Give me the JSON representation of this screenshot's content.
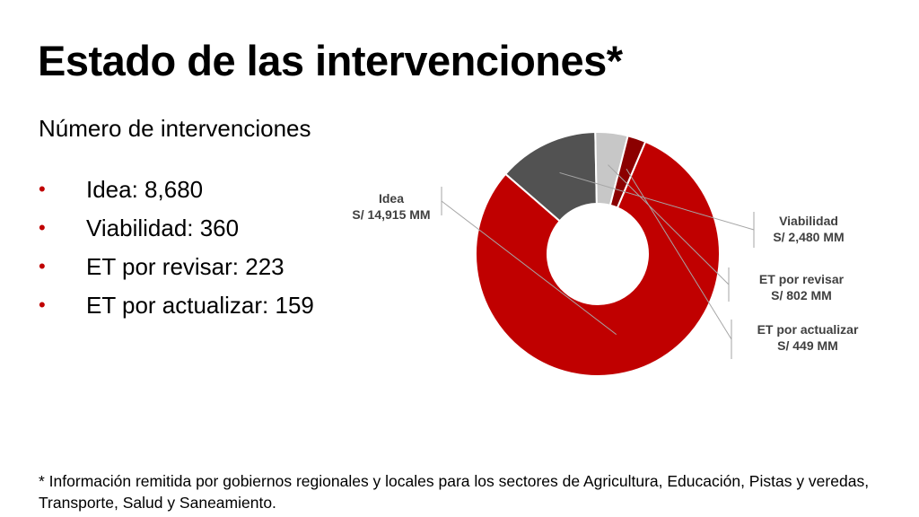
{
  "slide": {
    "title": "Estado de las intervenciones*",
    "subtitle": "Número de intervenciones",
    "bullets": [
      "Idea: 8,680",
      "Viabilidad: 360",
      "ET por revisar: 223",
      "ET por actualizar: 159"
    ],
    "footnote": "* Información remitida por gobiernos regionales y locales para los sectores de Agricultura, Educación, Pistas y veredas, Transporte, Salud y Saneamiento."
  },
  "colors": {
    "accent": "#c00000",
    "bullet": "#c00000"
  },
  "chart_data": {
    "type": "pie",
    "donut": true,
    "categories": [
      "Idea",
      "Viabilidad",
      "ET por revisar",
      "ET por actualizar"
    ],
    "values": [
      14915,
      2480,
      802,
      449
    ],
    "value_labels": [
      "S/ 14,915 MM",
      "S/ 2,480 MM",
      "S/ 802 MM",
      "S/ 449 MM"
    ],
    "colors": [
      "#c00000",
      "#525252",
      "#c7c7c7",
      "#8b0000"
    ],
    "legend": "none",
    "labels": "outside with leader lines"
  }
}
